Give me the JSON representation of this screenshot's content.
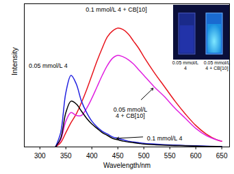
{
  "chart_data": {
    "type": "line",
    "x_label": "Wavelength/nm",
    "y_label": "Intensity",
    "tick_labels": "x",
    "grid": false,
    "xlim": [
      270,
      665
    ],
    "xticks": [
      300,
      350,
      400,
      450,
      500,
      550,
      600,
      650
    ],
    "ylim": [
      0,
      100
    ],
    "x": [
      330,
      340,
      350,
      360,
      370,
      380,
      390,
      400,
      410,
      420,
      430,
      440,
      450,
      460,
      470,
      480,
      490,
      500,
      520,
      540,
      560,
      580,
      600,
      620,
      640,
      650
    ],
    "series": [
      {
        "name": "0.1 mmol/L 4 + CB[10]",
        "color": "#e8141c",
        "label_x": 447,
        "label_y": 96,
        "values": [
          0,
          3,
          10,
          17,
          23,
          31,
          40,
          50,
          60,
          69,
          77,
          81,
          83,
          82,
          79,
          74,
          69,
          63,
          52,
          42,
          32,
          23,
          15,
          9,
          5,
          4
        ]
      },
      {
        "name": "0.05 mmol/L\n4 + CB[10]",
        "color": "#e020e0",
        "label_x": 474,
        "label_y": 24,
        "arrow": [
          495,
          33,
          518,
          41
        ],
        "values": [
          0,
          5,
          18,
          24,
          22,
          22,
          27,
          34,
          42,
          50,
          57,
          62,
          64,
          63,
          61,
          58,
          54,
          50,
          42,
          35,
          27,
          20,
          13,
          8,
          5,
          4
        ]
      },
      {
        "name": "0.05 mmol/L 4",
        "color": "#2020e0",
        "label_x": 316,
        "label_y": 57,
        "values": [
          0,
          10,
          38,
          50,
          44,
          32,
          24,
          18,
          14,
          11,
          9,
          7,
          6,
          5,
          4,
          3.5,
          3,
          2.5,
          2,
          1.6,
          1.3,
          1,
          0.8,
          0.6,
          0.4,
          0.3
        ]
      },
      {
        "name": "0.1 mmol/L 4",
        "color": "#000000",
        "label_x": 540,
        "label_y": 6,
        "arrow": [
          498,
          7,
          448,
          6
        ],
        "values": [
          0,
          6,
          24,
          32,
          30,
          25,
          20,
          16,
          13,
          10,
          8,
          6,
          5,
          4,
          3.5,
          3,
          2.5,
          2,
          1.5,
          1.2,
          1,
          0.8,
          0.6,
          0.4,
          0.3,
          0.2
        ]
      }
    ],
    "inset": {
      "labels": [
        "0.05 mmol/L\n4",
        "0.05 mmol/L\n4 + CB[10]"
      ]
    }
  }
}
